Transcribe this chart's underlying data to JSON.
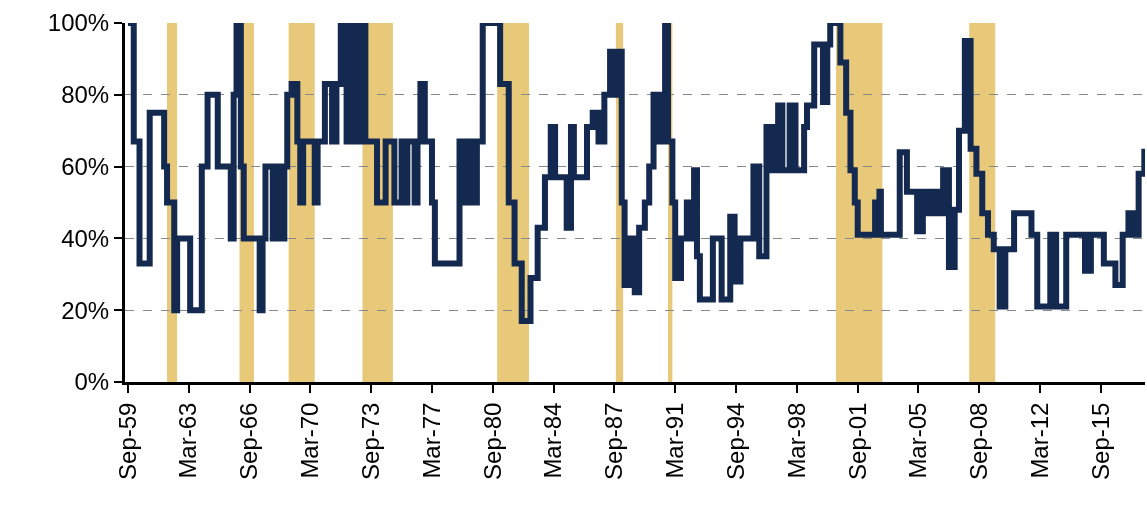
{
  "chart_data": {
    "type": "step",
    "x": [
      "1959-09",
      "1960-01",
      "1960-05",
      "1960-12",
      "1961-10",
      "1961-12",
      "1962-05",
      "1962-07",
      "1963-04",
      "1963-12",
      "1964-04",
      "1964-11",
      "1965-08",
      "1965-10",
      "1965-12",
      "1966-03",
      "1966-05",
      "1967-04",
      "1967-06",
      "1967-08",
      "1968-01",
      "1968-03",
      "1968-06",
      "1968-09",
      "1968-11",
      "1969-02",
      "1969-06",
      "1969-08",
      "1969-10",
      "1970-06",
      "1970-08",
      "1971-01",
      "1971-06",
      "1971-09",
      "1971-12",
      "1972-04",
      "1972-07",
      "1972-11",
      "1973-01",
      "1973-05",
      "1974-01",
      "1974-07",
      "1975-01",
      "1975-06",
      "1975-08",
      "1975-10",
      "1976-03",
      "1976-05",
      "1976-07",
      "1976-10",
      "1977-03",
      "1977-05",
      "1978-10",
      "1979-01",
      "1979-04",
      "1979-07",
      "1979-10",
      "1980-02",
      "1981-02",
      "1981-08",
      "1981-12",
      "1982-05",
      "1982-11",
      "1983-04",
      "1983-09",
      "1984-01",
      "1984-04",
      "1984-12",
      "1985-03",
      "1985-05",
      "1986-02",
      "1986-06",
      "1986-10",
      "1987-02",
      "1987-06",
      "1987-10",
      "1987-11",
      "1988-02",
      "1988-04",
      "1988-07",
      "1988-11",
      "1989-02",
      "1989-06",
      "1989-09",
      "1989-12",
      "1990-04",
      "1990-08",
      "1990-10",
      "1991-01",
      "1991-03",
      "1991-07",
      "1991-11",
      "1992-01",
      "1992-04",
      "1992-06",
      "1992-08",
      "1993-05",
      "1993-11",
      "1994-05",
      "1994-08",
      "1994-12",
      "1995-09",
      "1996-01",
      "1996-06",
      "1996-10",
      "1997-02",
      "1997-05",
      "1997-10",
      "1998-02",
      "1998-08",
      "1998-10",
      "1999-03",
      "1999-09",
      "1999-12",
      "2000-02",
      "2000-09",
      "2001-01",
      "2001-04",
      "2001-07",
      "2001-09",
      "2002-09",
      "2002-12",
      "2003-01",
      "2004-02",
      "2004-07",
      "2005-02",
      "2005-06",
      "2005-09",
      "2006-01",
      "2006-05",
      "2006-08",
      "2006-12",
      "2007-04",
      "2007-07",
      "2007-11",
      "2008-03",
      "2008-07",
      "2008-11",
      "2009-03",
      "2009-07",
      "2009-11",
      "2010-03",
      "2010-09",
      "2011-09",
      "2012-01",
      "2012-10",
      "2013-02",
      "2013-09",
      "2014-10",
      "2015-02",
      "2015-11",
      "2016-07",
      "2016-12",
      "2017-04",
      "2017-08",
      "2017-11",
      "2018-03"
    ],
    "series": [
      {
        "color": "#14294f",
        "values": [
          100,
          67,
          33,
          75,
          60,
          50,
          20,
          40,
          20,
          60,
          80,
          60,
          40,
          80,
          100,
          60,
          40,
          20,
          40,
          60,
          40,
          60,
          40,
          60,
          80,
          83,
          67,
          50,
          67,
          50,
          67,
          83,
          67,
          83,
          100,
          67,
          100,
          67,
          100,
          67,
          50,
          67,
          50,
          67,
          50,
          67,
          50,
          67,
          83,
          67,
          50,
          33,
          67,
          50,
          67,
          50,
          67,
          100,
          83,
          50,
          33,
          17,
          29,
          43,
          57,
          71,
          57,
          43,
          71,
          57,
          71,
          75,
          67,
          80,
          92,
          80,
          92,
          50,
          27,
          40,
          25,
          43,
          50,
          60,
          80,
          67,
          100,
          67,
          50,
          29,
          40,
          50,
          40,
          59,
          35,
          23,
          40,
          23,
          46,
          28,
          40,
          60,
          35,
          71,
          59,
          77,
          59,
          77,
          59,
          71,
          77,
          94,
          78,
          94,
          100,
          89,
          75,
          59,
          50,
          41,
          50,
          53,
          41,
          64,
          53,
          42,
          53,
          47,
          53,
          47,
          59,
          32,
          48,
          70,
          95,
          65,
          58,
          47,
          41,
          37,
          21,
          37,
          47,
          41,
          21,
          41,
          21,
          41,
          31,
          41,
          33,
          27,
          41,
          47,
          41,
          58,
          65
        ]
      }
    ],
    "xlim": [
      "1959-07",
      "2018-03-15"
    ],
    "xticks": [
      {
        "value": "1959-09",
        "label": "Sep-59"
      },
      {
        "value": "1963-03",
        "label": "Mar-63"
      },
      {
        "value": "1966-09",
        "label": "Sep-66"
      },
      {
        "value": "1970-03",
        "label": "Mar-70"
      },
      {
        "value": "1973-09",
        "label": "Sep-73"
      },
      {
        "value": "1977-03",
        "label": "Mar-77"
      },
      {
        "value": "1980-09",
        "label": "Sep-80"
      },
      {
        "value": "1984-03",
        "label": "Mar-84"
      },
      {
        "value": "1987-09",
        "label": "Sep-87"
      },
      {
        "value": "1991-03",
        "label": "Mar-91"
      },
      {
        "value": "1994-09",
        "label": "Sep-94"
      },
      {
        "value": "1998-03",
        "label": "Mar-98"
      },
      {
        "value": "2001-09",
        "label": "Sep-01"
      },
      {
        "value": "2005-03",
        "label": "Mar-05"
      },
      {
        "value": "2008-09",
        "label": "Sep-08"
      },
      {
        "value": "2012-03",
        "label": "Mar-12"
      },
      {
        "value": "2015-09",
        "label": "Sep-15"
      }
    ],
    "ylim": [
      0,
      100
    ],
    "yticks": [
      {
        "value": 0,
        "label": "0%"
      },
      {
        "value": 20,
        "label": "20%"
      },
      {
        "value": 40,
        "label": "40%"
      },
      {
        "value": 60,
        "label": "60%"
      },
      {
        "value": 80,
        "label": "80%"
      },
      {
        "value": 100,
        "label": "100%"
      }
    ],
    "grid": "y",
    "bands": [
      {
        "axis": "x",
        "from": "1961-12",
        "to": "1962-07",
        "color": "#e8c97a"
      },
      {
        "axis": "x",
        "from": "1966-02",
        "to": "1966-12",
        "color": "#e8c97a"
      },
      {
        "axis": "x",
        "from": "1968-12",
        "to": "1970-06",
        "color": "#e8c97a"
      },
      {
        "axis": "x",
        "from": "1973-03",
        "to": "1974-12",
        "color": "#e8c97a"
      },
      {
        "axis": "x",
        "from": "1980-12",
        "to": "1982-10",
        "color": "#e8c97a"
      },
      {
        "axis": "x",
        "from": "1987-10",
        "to": "1988-03",
        "color": "#e8c97a"
      },
      {
        "axis": "x",
        "from": "1990-10",
        "to": "1991-01",
        "color": "#e8c97a"
      },
      {
        "axis": "x",
        "from": "2000-06",
        "to": "2003-02",
        "color": "#e8c97a"
      },
      {
        "axis": "x",
        "from": "2008-02",
        "to": "2009-08",
        "color": "#e8c97a"
      }
    ]
  }
}
